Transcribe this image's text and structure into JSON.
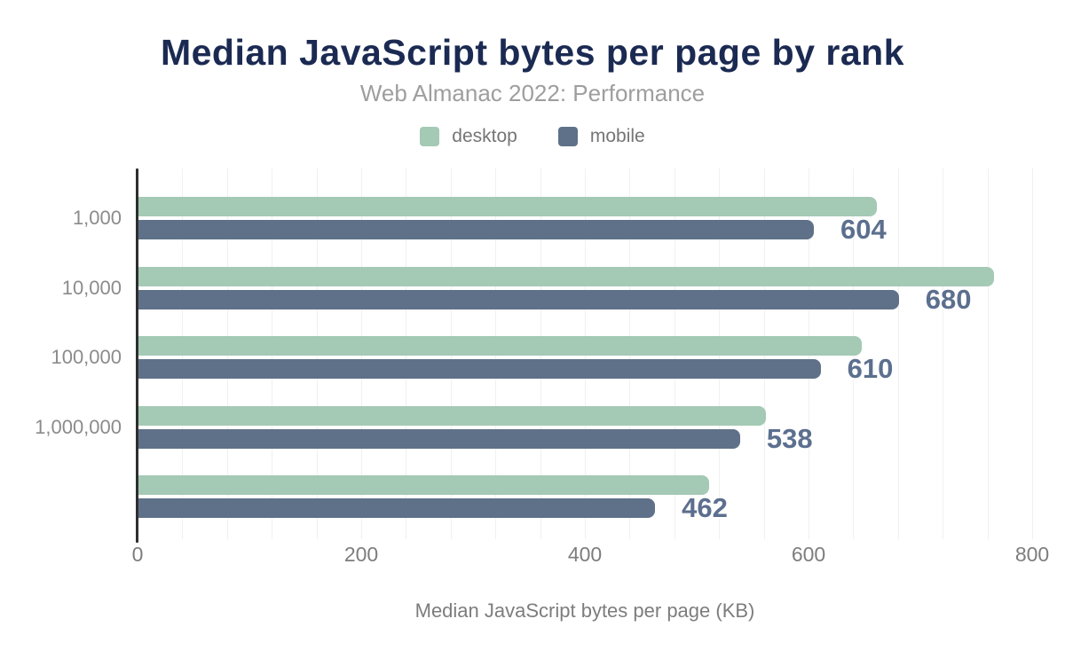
{
  "header": {
    "title": "Median JavaScript bytes per page by rank",
    "subtitle": "Web Almanac 2022: Performance"
  },
  "legend": {
    "items": [
      {
        "label": "desktop",
        "color": "#a4c9b5"
      },
      {
        "label": "mobile",
        "color": "#5f7189"
      }
    ]
  },
  "chart_data": {
    "type": "bar",
    "orientation": "horizontal",
    "title": "Median JavaScript bytes per page by rank",
    "subtitle": "Web Almanac 2022: Performance",
    "xlabel": "Median JavaScript bytes per page (KB)",
    "categories": [
      "1,000",
      "10,000",
      "100,000",
      "1,000,000",
      ""
    ],
    "series": [
      {
        "name": "desktop",
        "color": "#a4c9b5",
        "values": [
          660,
          765,
          647,
          561,
          510
        ]
      },
      {
        "name": "mobile",
        "color": "#5f7189",
        "values": [
          604,
          680,
          610,
          538,
          462
        ]
      }
    ],
    "value_labels": [
      "604",
      "680",
      "610",
      "538",
      "462"
    ],
    "labeled_series": "mobile",
    "xlim": [
      0,
      800
    ],
    "x_ticks": [
      0,
      200,
      400,
      600,
      800
    ],
    "minor_grid_step": 40,
    "grid": true,
    "legend_position": "top"
  },
  "colors": {
    "title": "#1b2a52",
    "subtitle": "#9e9e9e",
    "axis_text": "#7d7d7d",
    "y_label": "#8b8b8b",
    "value_label": "#5c6f8e",
    "axis_line": "#2e2e2e",
    "gridline": "#f0f0f0"
  }
}
